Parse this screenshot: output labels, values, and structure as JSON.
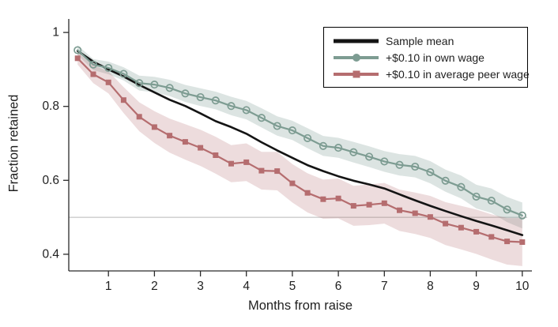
{
  "figure": {
    "background": "#ffffff"
  },
  "chart_data": {
    "type": "line",
    "title": "",
    "xlabel": "Months from raise",
    "ylabel": "Fraction retained",
    "xlim": [
      0.137,
      10.21
    ],
    "ylim": [
      0.355,
      1.045
    ],
    "x_ticks": [
      1,
      2,
      3,
      4,
      5,
      6,
      7,
      8,
      9,
      10
    ],
    "x_tick_labels": [
      "1",
      "2",
      "3",
      "4",
      "5",
      "6",
      "7",
      "8",
      "9",
      "10"
    ],
    "y_ticks": [
      0.4,
      0.6,
      0.8,
      1
    ],
    "y_tick_labels": [
      "0.4",
      "0.6",
      "0.8",
      "1"
    ],
    "grid": false,
    "reference_line_y": 0.5,
    "reference_line_color": "#b9b9b9",
    "axis_color": "#2a2a2a",
    "text_color": "#1f1f1f",
    "legend_position": "top-right",
    "x": [
      0.33,
      0.67,
      1,
      1.33,
      1.67,
      2,
      2.33,
      2.67,
      3,
      3.33,
      3.67,
      4,
      4.33,
      4.67,
      5,
      5.33,
      5.67,
      6,
      6.33,
      6.67,
      7,
      7.33,
      7.67,
      8,
      8.33,
      8.67,
      9,
      9.33,
      9.67,
      10
    ],
    "series": [
      {
        "name": "Sample mean",
        "color": "#141414",
        "line_width": 2.6,
        "marker": "none",
        "values": [
          0.95,
          0.921,
          0.9,
          0.881,
          0.858,
          0.838,
          0.818,
          0.801,
          0.781,
          0.76,
          0.744,
          0.726,
          0.703,
          0.681,
          0.661,
          0.641,
          0.625,
          0.611,
          0.599,
          0.589,
          0.578,
          0.562,
          0.546,
          0.531,
          0.517,
          0.503,
          0.49,
          0.478,
          0.465,
          0.452
        ]
      },
      {
        "name": "+$0.10 in own wage",
        "color": "#7d9c92",
        "band_color": "rgba(125,156,146,0.27)",
        "line_width": 2.2,
        "marker": "circle-open",
        "values": [
          0.952,
          0.913,
          0.904,
          0.888,
          0.863,
          0.859,
          0.85,
          0.835,
          0.825,
          0.816,
          0.801,
          0.79,
          0.769,
          0.747,
          0.735,
          0.714,
          0.693,
          0.688,
          0.676,
          0.664,
          0.651,
          0.642,
          0.637,
          0.622,
          0.599,
          0.582,
          0.556,
          0.545,
          0.521,
          0.505
        ],
        "band_halfwidth": [
          0.013,
          0.015,
          0.017,
          0.018,
          0.02,
          0.021,
          0.022,
          0.023,
          0.024,
          0.024,
          0.025,
          0.025,
          0.026,
          0.026,
          0.026,
          0.027,
          0.027,
          0.027,
          0.028,
          0.028,
          0.028,
          0.029,
          0.029,
          0.03,
          0.03,
          0.031,
          0.032,
          0.033,
          0.034,
          0.035
        ]
      },
      {
        "name": "+$0.10 in average peer wage",
        "color": "#b56d6f",
        "band_color": "rgba(181,109,111,0.24)",
        "line_width": 2.2,
        "marker": "square",
        "values": [
          0.93,
          0.887,
          0.865,
          0.817,
          0.772,
          0.744,
          0.721,
          0.704,
          0.688,
          0.668,
          0.645,
          0.649,
          0.626,
          0.625,
          0.592,
          0.566,
          0.549,
          0.551,
          0.531,
          0.534,
          0.538,
          0.519,
          0.511,
          0.501,
          0.483,
          0.472,
          0.461,
          0.447,
          0.435,
          0.433
        ],
        "band_halfwidth": [
          0.017,
          0.024,
          0.03,
          0.035,
          0.039,
          0.043,
          0.046,
          0.048,
          0.049,
          0.05,
          0.05,
          0.051,
          0.051,
          0.052,
          0.052,
          0.053,
          0.053,
          0.054,
          0.054,
          0.055,
          0.055,
          0.056,
          0.056,
          0.057,
          0.058,
          0.059,
          0.06,
          0.061,
          0.063,
          0.065
        ]
      }
    ]
  }
}
